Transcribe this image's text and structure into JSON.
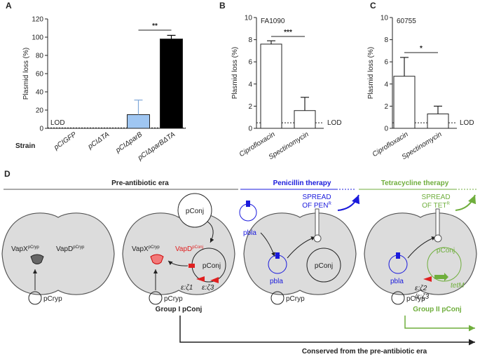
{
  "chart_data": [
    {
      "type": "bar",
      "panel_label": "A",
      "y_label": "Plasmid loss (%)",
      "x_label": "Strain",
      "categories": [
        "pCIGFP",
        "pCIΔTA",
        "pCIΔparB",
        "pCIΔparBΔTA"
      ],
      "values": [
        0,
        0,
        15,
        98
      ],
      "errors": [
        null,
        null,
        16,
        4
      ],
      "colors": [
        "#ffffff",
        "#ffffff",
        "#9fc6f2",
        "#000000"
      ],
      "ylim": [
        0,
        120
      ],
      "yticks": [
        0,
        20,
        40,
        60,
        80,
        100,
        120
      ],
      "significance": "**",
      "lod_label": "LOD",
      "lod_level": 0.5
    },
    {
      "type": "bar",
      "panel_label": "B",
      "subtitle": "FA1090",
      "y_label": "Plasmid loss (%)",
      "categories": [
        "Ciprofloxacin",
        "Spectinomycin"
      ],
      "values": [
        7.6,
        1.6
      ],
      "errors": [
        0.3,
        1.2
      ],
      "colors": [
        "#ffffff",
        "#ffffff"
      ],
      "ylim": [
        0,
        10
      ],
      "yticks": [
        0,
        2,
        4,
        6,
        8,
        10
      ],
      "significance": "***",
      "lod_label": "LOD",
      "lod_level": 0.5
    },
    {
      "type": "bar",
      "panel_label": "C",
      "subtitle": "60755",
      "y_label": "Plasmid loss (%)",
      "categories": [
        "Ciprofloxacin",
        "Spectinomycin"
      ],
      "values": [
        4.7,
        1.3
      ],
      "errors": [
        1.7,
        0.7
      ],
      "colors": [
        "#ffffff",
        "#ffffff"
      ],
      "ylim": [
        0,
        10
      ],
      "yticks": [
        0,
        2,
        4,
        6,
        8,
        10
      ],
      "significance": "*",
      "lod_label": "LOD",
      "lod_level": 0.5
    }
  ],
  "diagram": {
    "panel_label": "D",
    "eras": [
      "Pre-antibiotic era",
      "Penicillin therapy",
      "Tetracycline therapy"
    ],
    "cell_1": {
      "toxin": "VapX",
      "toxin_source": "pCryp",
      "antitoxin": "VapD",
      "antitoxin_source": "pCryp",
      "cryptic": "pCryp"
    },
    "cell_2": {
      "donor": "pConj",
      "toxin": "VapX",
      "toxin_source": "pCryp",
      "antitoxin": "VapD",
      "antitoxin_source": "pConj",
      "plasmid": "pConj",
      "locus_1": "ε:ζ1",
      "locus_2": "ε:ζ3",
      "cryptic": "pCryp"
    },
    "cell_3": {
      "spread": "SPREAD",
      "spread_of": "OF PEN",
      "superscript": "R",
      "incoming": "pbla",
      "resident": "pbla",
      "plasmid": "pConj",
      "cryptic": "pCryp"
    },
    "cell_4": {
      "spread": "SPREAD",
      "spread_of": "OF TET",
      "superscript": "R",
      "resident": "pbla",
      "plasmid": "pConj",
      "locus_1": "ε:ζ2",
      "locus_2": "/ε:ζ3",
      "resistance": "tetM",
      "cryptic": "pCryp"
    },
    "group_1": "Group I pConj",
    "group_2": "Group II pConj",
    "conserved": "Conserved from the pre-antibiotic era"
  }
}
